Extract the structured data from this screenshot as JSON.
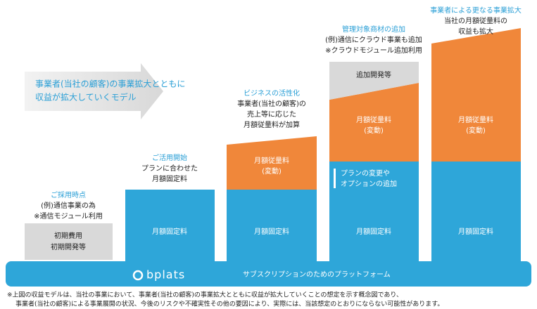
{
  "headline": [
    "事業者(当社の顧客)の事業拡大とともに",
    "収益が拡大していくモデル"
  ],
  "stages": [
    {
      "title": "ご採用時点",
      "lines": [
        "(例)通信事業の為",
        "※通信モジュール利用"
      ],
      "boxes": {
        "initial": [
          "初期費用",
          "初期開発等"
        ]
      }
    },
    {
      "title": "ご活用開始",
      "lines": [
        "プランに合わせた",
        "月額固定料"
      ],
      "boxes": {
        "fixed": "月額固定料"
      }
    },
    {
      "title": "ビジネスの活性化",
      "lines": [
        "事業者(当社の顧客)の",
        "売上等に応じた",
        "月額従量料が加算"
      ],
      "boxes": {
        "fixed": "月額固定料",
        "usage": [
          "月額従量料",
          "(変動)"
        ]
      }
    },
    {
      "title": "管理対象商材の追加",
      "lines": [
        "(例)通信にクラウド事業も追加",
        "※クラウドモジュール追加利用"
      ],
      "boxes": {
        "fixed": "月額固定料",
        "usage": [
          "月額従量料",
          "(変動)"
        ],
        "extra": "追加開発等",
        "plan": [
          "プランの変更や",
          "オプションの追加"
        ]
      }
    },
    {
      "title": "事業者による更なる事業拡大",
      "lines": [
        "当社の月額従量料の",
        "収益も拡大"
      ],
      "boxes": {
        "fixed": "月額固定料",
        "usage": [
          "月額従量料",
          "(変動)"
        ]
      }
    }
  ],
  "platform": {
    "logo": "bplats",
    "label": "サブスクリプションのためのプラットフォーム"
  },
  "footnote": [
    "※上図の収益モデルは、当社の事業において、事業者(当社の顧客)の事業拡大とともに収益が拡大していくことの想定を示す概念図であり、",
    "事業者(当社の顧客)による事業展開の状況、今後のリスクや不確実性その他の要因により、実際には、当該想定のとおりにならない可能性があります。"
  ]
}
